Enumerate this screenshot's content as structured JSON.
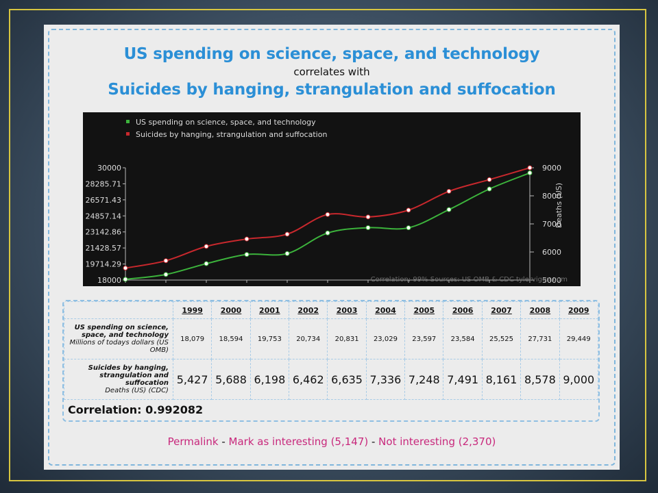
{
  "page": {
    "title_line1": "US spending on science, space, and technology",
    "title_line2": "correlates with",
    "title_line3": "Suicides by hanging, strangulation and suffocation"
  },
  "chart_data": {
    "type": "line",
    "x": [
      1999,
      2000,
      2001,
      2002,
      2003,
      2004,
      2005,
      2006,
      2007,
      2008,
      2009
    ],
    "series": [
      {
        "name": "US spending on science, space, and technology",
        "color": "#3cb43c",
        "axis": "left",
        "values": [
          18079,
          18594,
          19753,
          20734,
          20831,
          23029,
          23597,
          23584,
          25525,
          27731,
          29449
        ]
      },
      {
        "name": "Suicides by hanging, strangulation and suffocation",
        "color": "#c8282d",
        "axis": "right",
        "values": [
          5427,
          5688,
          6198,
          6462,
          6635,
          7336,
          7248,
          7491,
          8161,
          8578,
          9000
        ]
      }
    ],
    "y_left": {
      "ylim": [
        18000,
        30000
      ],
      "ticks": [
        "30000",
        "28285.71",
        "26571.43",
        "24857.14",
        "23142.86",
        "21428.57",
        "19714.29",
        "18000"
      ]
    },
    "y_right": {
      "label": "Deaths (US)",
      "ylim": [
        5000,
        9000
      ],
      "ticks": [
        "9000",
        "8000",
        "7000",
        "6000",
        "5000"
      ]
    },
    "legend_position": "top-left",
    "footer": "Correlation: 99%   Sources: US OMB & CDC   tylervigen.com",
    "grid": false
  },
  "table": {
    "years": [
      "1999",
      "2000",
      "2001",
      "2002",
      "2003",
      "2004",
      "2005",
      "2006",
      "2007",
      "2008",
      "2009"
    ],
    "row1_label": "US spending on science, space, and technology",
    "row1_unit": "Millions of todays dollars (US OMB)",
    "row1_values": [
      "18,079",
      "18,594",
      "19,753",
      "20,734",
      "20,831",
      "23,029",
      "23,597",
      "23,584",
      "25,525",
      "27,731",
      "29,449"
    ],
    "row2_label": "Suicides by hanging, strangulation and suffocation",
    "row2_unit": "Deaths (US) (CDC)",
    "row2_values": [
      "5,427",
      "5,688",
      "6,198",
      "6,462",
      "6,635",
      "7,336",
      "7,248",
      "7,491",
      "8,161",
      "8,578",
      "9,000"
    ],
    "correlation": "Correlation: 0.992082"
  },
  "links": {
    "permalink": "Permalink",
    "sep": " - ",
    "interesting": "Mark as interesting (5,147)",
    "not_interesting": "Not interesting (2,370)"
  }
}
